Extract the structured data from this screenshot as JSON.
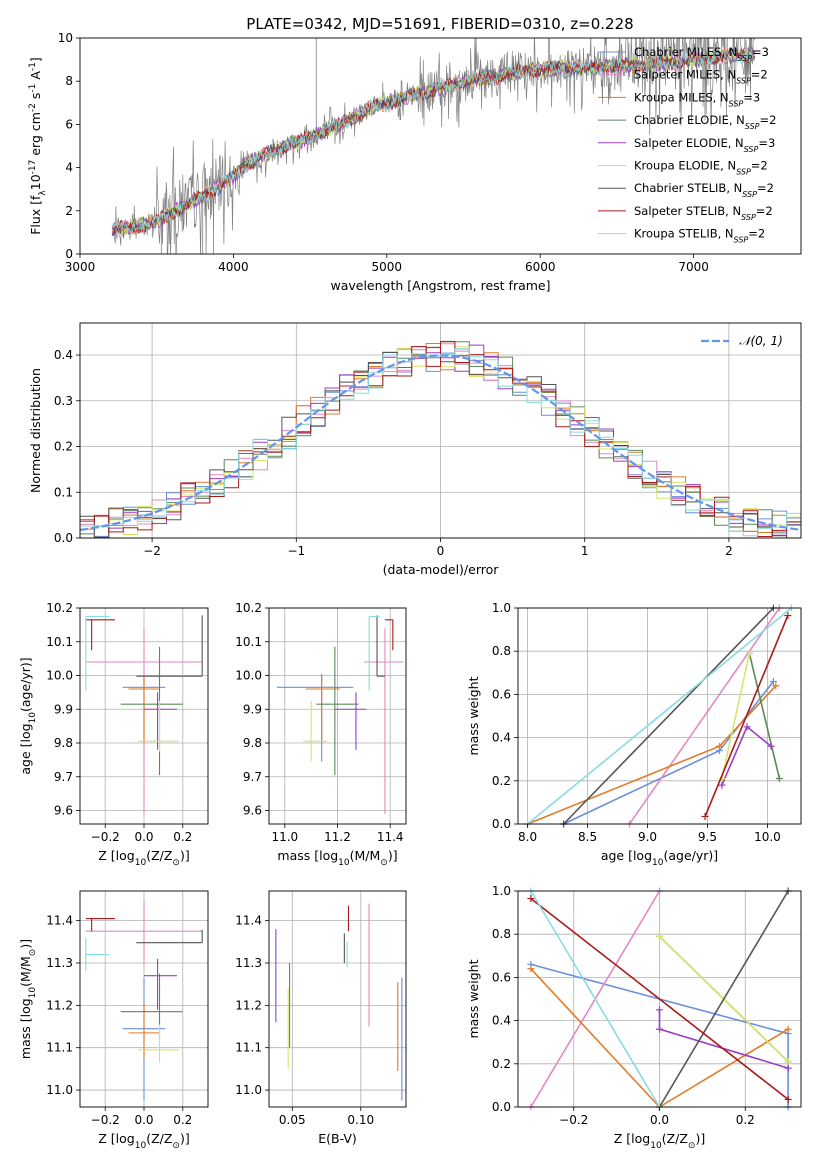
{
  "figure_title": "PLATE=0342, MJD=51691, FIBERID=0310, z=0.228",
  "colors": {
    "Chabrier MILES": "#6a8fdb",
    "Salpeter MILES": "#e389c2",
    "Kroupa MILES": "#e07b28",
    "Chabrier ELODIE": "#5b8a5b",
    "Salpeter ELODIE": "#9a3fc4",
    "Kroupa ELODIE": "#d6e66a",
    "Chabrier STELIB": "#555555",
    "Salpeter STELIB": "#aa1a1a",
    "Kroupa STELIB": "#88dbe3",
    "normal": "#6495ed"
  },
  "chart_data": [
    {
      "id": "spectrum",
      "type": "line",
      "xlabel": "wavelength [Angstrom, rest frame]",
      "ylabel": "Flux [f$_\\lambda$10$^{-17}$ erg cm$^{-2}$ s$^{-1}$ A$^{-1}$]",
      "xlim": [
        3000,
        7700
      ],
      "ylim": [
        0,
        10
      ],
      "xticks": [
        "3000",
        "4000",
        "5000",
        "6000",
        "7000"
      ],
      "yticks": [
        "0",
        "2",
        "4",
        "6",
        "8",
        "10"
      ],
      "legend": [
        {
          "label": "Chabrier MILES, N",
          "sub": "SSP",
          "suffix": "=3",
          "key": "Chabrier MILES"
        },
        {
          "label": "Salpeter MILES, N",
          "sub": "SSP",
          "suffix": "=2",
          "key": "Salpeter MILES"
        },
        {
          "label": "Kroupa MILES, N",
          "sub": "SSP",
          "suffix": "=3",
          "key": "Kroupa MILES"
        },
        {
          "label": "Chabrier ELODIE, N",
          "sub": "SSP",
          "suffix": "=2",
          "key": "Chabrier ELODIE"
        },
        {
          "label": "Salpeter ELODIE, N",
          "sub": "SSP",
          "suffix": "=3",
          "key": "Salpeter ELODIE"
        },
        {
          "label": "Kroupa ELODIE, N",
          "sub": "SSP",
          "suffix": "=2",
          "key": "Kroupa ELODIE"
        },
        {
          "label": "Chabrier STELIB, N",
          "sub": "SSP",
          "suffix": "=2",
          "key": "Chabrier STELIB"
        },
        {
          "label": "Salpeter STELIB, N",
          "sub": "SSP",
          "suffix": "=2",
          "key": "Salpeter STELIB"
        },
        {
          "label": "Kroupa STELIB, N",
          "sub": "SSP",
          "suffix": "=2",
          "key": "Kroupa STELIB"
        }
      ],
      "legend_placement": "right",
      "continuum": {
        "x": [
          3210,
          3300,
          3500,
          3700,
          3900,
          4000,
          4100,
          4300,
          4500,
          4700,
          4900,
          5100,
          5300,
          5500,
          5700,
          5900,
          6100,
          6300,
          6500,
          6700,
          6900,
          7100,
          7300,
          7400
        ],
        "y": [
          1.1,
          1.2,
          1.5,
          2.3,
          3.1,
          3.6,
          4.2,
          4.9,
          5.4,
          6.0,
          6.8,
          7.2,
          7.6,
          8.0,
          8.2,
          8.5,
          8.6,
          8.6,
          8.7,
          8.8,
          8.9,
          9.1,
          9.2,
          9.2
        ]
      },
      "observed_color": "#808080"
    },
    {
      "id": "residuals",
      "type": "step",
      "xlabel": "(data-model)/error",
      "ylabel": "Normed distribution",
      "xlim": [
        -2.5,
        2.5
      ],
      "ylim": [
        0,
        0.47
      ],
      "xticks": [
        "−2",
        "−1",
        "0",
        "1",
        "2"
      ],
      "yticks": [
        "0.0",
        "0.1",
        "0.2",
        "0.3",
        "0.4"
      ],
      "grid": true,
      "legend": [
        {
          "label": "𝒩(0, 1)",
          "key": "normal"
        }
      ],
      "legend_placement": "top-right",
      "series_keys": [
        "Chabrier MILES",
        "Salpeter MILES",
        "Kroupa MILES",
        "Chabrier ELODIE",
        "Salpeter ELODIE",
        "Kroupa ELODIE",
        "Chabrier STELIB",
        "Salpeter STELIB",
        "Kroupa STELIB"
      ]
    },
    {
      "id": "age-vs-Z",
      "type": "errorbar",
      "xlabel": "Z [log$_{10}$(Z/Z$_\\odot$)]",
      "ylabel": "age  [log$_{10}$(age/yr)]",
      "xlim": [
        -0.33,
        0.33
      ],
      "ylim": [
        9.56,
        10.2
      ],
      "xticks": [
        "−0.2",
        "0.0",
        "0.2"
      ],
      "yticks": [
        "9.6",
        "9.7",
        "9.8",
        "9.9",
        "10.0",
        "10.1",
        "10.2"
      ],
      "grid": true,
      "points": [
        {
          "key": "Chabrier MILES",
          "x": 0.0,
          "xerr": [
            0.11,
            0.11
          ],
          "y": 9.965,
          "yerr": [
            0.22,
            0.04
          ]
        },
        {
          "key": "Salpeter MILES",
          "x": 0.0,
          "xerr": [
            0.3,
            0.3
          ],
          "y": 10.04,
          "yerr": [
            0.45,
            0.1
          ]
        },
        {
          "key": "Kroupa MILES",
          "x": 0.0,
          "xerr": [
            0.08,
            0.08
          ],
          "y": 9.96,
          "yerr": [
            0.16,
            0.04
          ]
        },
        {
          "key": "Chabrier ELODIE",
          "x": 0.08,
          "xerr": [
            0.2,
            0.12
          ],
          "y": 9.915,
          "yerr": [
            0.21,
            0.17
          ]
        },
        {
          "key": "Salpeter ELODIE",
          "x": 0.07,
          "xerr": [
            0.07,
            0.1
          ],
          "y": 9.9,
          "yerr": [
            0.12,
            0.05
          ]
        },
        {
          "key": "Kroupa ELODIE",
          "x": 0.08,
          "xerr": [
            0.11,
            0.1
          ],
          "y": 9.805,
          "yerr": [
            0.03,
            0.12
          ]
        },
        {
          "key": "Chabrier STELIB",
          "x": 0.3,
          "xerr": [
            0.34,
            0.0
          ],
          "y": 9.998,
          "yerr": [
            0.0,
            0.18
          ]
        },
        {
          "key": "Salpeter STELIB",
          "x": -0.27,
          "xerr": [
            0.03,
            0.12
          ],
          "y": 10.165,
          "yerr": [
            0.09,
            0.0
          ]
        },
        {
          "key": "Kroupa STELIB",
          "x": -0.3,
          "xerr": [
            0.0,
            0.12
          ],
          "y": 10.175,
          "yerr": [
            0.22,
            0.0
          ]
        }
      ]
    },
    {
      "id": "age-vs-mass",
      "type": "errorbar",
      "xlabel": "mass [log$_{10}$(M/M$_\\odot$)]",
      "ylabel": "",
      "xlim": [
        10.94,
        11.46
      ],
      "ylim": [
        9.56,
        10.2
      ],
      "xticks": [
        "11.0",
        "11.2",
        "11.4"
      ],
      "yticks": [
        "9.6",
        "9.7",
        "9.8",
        "9.9",
        "10.0",
        "10.1",
        "10.2"
      ],
      "grid": true,
      "points": [
        {
          "key": "Chabrier MILES",
          "x": 11.14,
          "xerr": [
            0.17,
            0.12
          ],
          "y": 9.965,
          "yerr": [
            0.22,
            0.04
          ]
        },
        {
          "key": "Salpeter MILES",
          "x": 11.38,
          "xerr": [
            0.08,
            0.07
          ],
          "y": 10.04,
          "yerr": [
            0.45,
            0.1
          ]
        },
        {
          "key": "Kroupa MILES",
          "x": 11.14,
          "xerr": [
            0.06,
            0.07
          ],
          "y": 9.96,
          "yerr": [
            0.16,
            0.04
          ]
        },
        {
          "key": "Chabrier ELODIE",
          "x": 11.19,
          "xerr": [
            0.07,
            0.09
          ],
          "y": 9.915,
          "yerr": [
            0.21,
            0.17
          ]
        },
        {
          "key": "Salpeter ELODIE",
          "x": 11.27,
          "xerr": [
            0.08,
            0.04
          ],
          "y": 9.9,
          "yerr": [
            0.12,
            0.05
          ]
        },
        {
          "key": "Kroupa ELODIE",
          "x": 11.1,
          "xerr": [
            0.03,
            0.06
          ],
          "y": 9.805,
          "yerr": [
            0.06,
            0.12
          ]
        },
        {
          "key": "Chabrier STELIB",
          "x": 11.35,
          "xerr": [
            0.0,
            0.03
          ],
          "y": 9.998,
          "yerr": [
            0.0,
            0.18
          ]
        },
        {
          "key": "Salpeter STELIB",
          "x": 11.41,
          "xerr": [
            0.03,
            0.0
          ],
          "y": 10.165,
          "yerr": [
            0.09,
            0.0
          ]
        },
        {
          "key": "Kroupa STELIB",
          "x": 11.32,
          "xerr": [
            0.0,
            0.04
          ],
          "y": 10.175,
          "yerr": [
            0.22,
            0.0
          ]
        }
      ]
    },
    {
      "id": "weight-vs-age",
      "type": "line",
      "xlabel": "age  [log$_{10}$(age/yr)]",
      "ylabel": "mass weight",
      "xlim": [
        7.92,
        10.28
      ],
      "ylim": [
        0,
        1
      ],
      "xticks": [
        "8.0",
        "8.5",
        "9.0",
        "9.5",
        "10.0"
      ],
      "yticks": [
        "0.0",
        "0.2",
        "0.4",
        "0.6",
        "0.8",
        "1.0"
      ],
      "grid": true,
      "series": [
        {
          "key": "Chabrier MILES",
          "x": [
            8.3,
            9.6,
            10.05
          ],
          "y": [
            0.0,
            0.34,
            0.66
          ]
        },
        {
          "key": "Salpeter MILES",
          "x": [
            8.85,
            10.1
          ],
          "y": [
            0.0,
            1.0
          ]
        },
        {
          "key": "Kroupa MILES",
          "x": [
            8.0,
            9.6,
            10.07
          ],
          "y": [
            0.0,
            0.36,
            0.64
          ]
        },
        {
          "key": "Chabrier ELODIE",
          "x": [
            9.85,
            10.1
          ],
          "y": [
            0.79,
            0.21
          ]
        },
        {
          "key": "Salpeter ELODIE",
          "x": [
            9.62,
            9.83,
            10.03
          ],
          "y": [
            0.18,
            0.45,
            0.36
          ]
        },
        {
          "key": "Kroupa ELODIE",
          "x": [
            9.62,
            9.85
          ],
          "y": [
            0.21,
            0.79
          ]
        },
        {
          "key": "Chabrier STELIB",
          "x": [
            8.3,
            10.05
          ],
          "y": [
            0.0,
            1.0
          ]
        },
        {
          "key": "Salpeter STELIB",
          "x": [
            9.48,
            10.17
          ],
          "y": [
            0.035,
            0.965
          ]
        },
        {
          "key": "Kroupa STELIB",
          "x": [
            8.0,
            10.2
          ],
          "y": [
            0.0,
            1.0
          ]
        }
      ]
    },
    {
      "id": "mass-vs-Z",
      "type": "errorbar",
      "xlabel": "Z [log$_{10}$(Z/Z$_\\odot$)]",
      "ylabel": "mass [log$_{10}$(M/M$_\\odot$)]",
      "xlim": [
        -0.33,
        0.33
      ],
      "ylim": [
        10.96,
        11.47
      ],
      "xticks": [
        "−0.2",
        "0.0",
        "0.2"
      ],
      "yticks": [
        "11.0",
        "11.1",
        "11.2",
        "11.3",
        "11.4"
      ],
      "grid": true,
      "points": [
        {
          "key": "Chabrier MILES",
          "x": 0.0,
          "xerr": [
            0.11,
            0.11
          ],
          "y": 11.145,
          "yerr": [
            0.17,
            0.12
          ]
        },
        {
          "key": "Salpeter MILES",
          "x": 0.0,
          "xerr": [
            0.3,
            0.3
          ],
          "y": 11.375,
          "yerr": [
            0.08,
            0.07
          ]
        },
        {
          "key": "Kroupa MILES",
          "x": 0.0,
          "xerr": [
            0.08,
            0.08
          ],
          "y": 11.135,
          "yerr": [
            0.06,
            0.07
          ]
        },
        {
          "key": "Chabrier ELODIE",
          "x": 0.08,
          "xerr": [
            0.2,
            0.12
          ],
          "y": 11.185,
          "yerr": [
            0.07,
            0.09
          ]
        },
        {
          "key": "Salpeter ELODIE",
          "x": 0.07,
          "xerr": [
            0.07,
            0.1
          ],
          "y": 11.27,
          "yerr": [
            0.08,
            0.04
          ]
        },
        {
          "key": "Kroupa ELODIE",
          "x": 0.08,
          "xerr": [
            0.11,
            0.1
          ],
          "y": 11.095,
          "yerr": [
            0.03,
            0.06
          ]
        },
        {
          "key": "Chabrier STELIB",
          "x": 0.3,
          "xerr": [
            0.34,
            0.0
          ],
          "y": 11.348,
          "yerr": [
            0.0,
            0.03
          ]
        },
        {
          "key": "Salpeter STELIB",
          "x": -0.27,
          "xerr": [
            0.03,
            0.12
          ],
          "y": 11.405,
          "yerr": [
            0.03,
            0.0
          ]
        },
        {
          "key": "Kroupa STELIB",
          "x": -0.3,
          "xerr": [
            0.0,
            0.12
          ],
          "y": 11.32,
          "yerr": [
            0.04,
            0.04
          ]
        }
      ]
    },
    {
      "id": "mass-vs-ebv",
      "type": "errorbar",
      "xlabel": "E(B-V)",
      "ylabel": "",
      "xlim": [
        0.033,
        0.133
      ],
      "ylim": [
        10.96,
        11.47
      ],
      "xticks": [
        "0.05",
        "0.10"
      ],
      "yticks": [
        "11.0",
        "11.1",
        "11.2",
        "11.3",
        "11.4"
      ],
      "grid": true,
      "points": [
        {
          "key": "Chabrier MILES",
          "x": 0.13,
          "xerr": [
            0,
            0
          ],
          "y": 11.145,
          "yerr": [
            0.17,
            0.12
          ]
        },
        {
          "key": "Salpeter MILES",
          "x": 0.106,
          "xerr": [
            0,
            0
          ],
          "y": 11.36,
          "yerr": [
            0.21,
            0.08
          ]
        },
        {
          "key": "Kroupa MILES",
          "x": 0.127,
          "xerr": [
            0,
            0
          ],
          "y": 11.135,
          "yerr": [
            0.09,
            0.12
          ]
        },
        {
          "key": "Chabrier ELODIE",
          "x": 0.048,
          "xerr": [
            0,
            0
          ],
          "y": 11.2,
          "yerr": [
            0.1,
            0.1
          ]
        },
        {
          "key": "Salpeter ELODIE",
          "x": 0.038,
          "xerr": [
            0,
            0
          ],
          "y": 11.27,
          "yerr": [
            0.11,
            0.11
          ]
        },
        {
          "key": "Kroupa ELODIE",
          "x": 0.047,
          "xerr": [
            0,
            0
          ],
          "y": 11.13,
          "yerr": [
            0.08,
            0.11
          ]
        },
        {
          "key": "Chabrier STELIB",
          "x": 0.088,
          "xerr": [
            0,
            0
          ],
          "y": 11.33,
          "yerr": [
            0.03,
            0.04
          ]
        },
        {
          "key": "Salpeter STELIB",
          "x": 0.091,
          "xerr": [
            0,
            0
          ],
          "y": 11.405,
          "yerr": [
            0.03,
            0.03
          ]
        },
        {
          "key": "Kroupa STELIB",
          "x": 0.09,
          "xerr": [
            0,
            0
          ],
          "y": 11.31,
          "yerr": [
            0.02,
            0.04
          ]
        }
      ]
    },
    {
      "id": "weight-vs-Z",
      "type": "line",
      "xlabel": "Z [log$_{10}$(Z/Z$_\\odot$)]",
      "ylabel": "mass weight",
      "xlim": [
        -0.33,
        0.33
      ],
      "ylim": [
        0,
        1
      ],
      "xticks": [
        "−0.2",
        "0.0",
        "0.2"
      ],
      "yticks": [
        "0.0",
        "0.2",
        "0.4",
        "0.6",
        "0.8",
        "1.0"
      ],
      "grid": true,
      "series": [
        {
          "key": "Chabrier MILES",
          "x": [
            -0.3,
            0.3,
            0.3
          ],
          "y": [
            0.66,
            0.34,
            0.0
          ]
        },
        {
          "key": "Salpeter MILES",
          "x": [
            -0.3,
            0.0
          ],
          "y": [
            0.0,
            1.0
          ]
        },
        {
          "key": "Kroupa MILES",
          "x": [
            -0.3,
            0.0,
            0.3
          ],
          "y": [
            0.64,
            0.0,
            0.36
          ]
        },
        {
          "key": "Chabrier ELODIE",
          "x": [
            0.0,
            0.3
          ],
          "y": [
            0.79,
            0.21
          ]
        },
        {
          "key": "Salpeter ELODIE",
          "x": [
            0.0,
            0.0,
            0.3
          ],
          "y": [
            0.45,
            0.36,
            0.18
          ]
        },
        {
          "key": "Kroupa ELODIE",
          "x": [
            0.0,
            0.3
          ],
          "y": [
            0.79,
            0.21
          ]
        },
        {
          "key": "Chabrier STELIB",
          "x": [
            0.0,
            0.3
          ],
          "y": [
            0.0,
            1.0
          ]
        },
        {
          "key": "Salpeter STELIB",
          "x": [
            -0.3,
            0.3
          ],
          "y": [
            0.965,
            0.035
          ]
        },
        {
          "key": "Kroupa STELIB",
          "x": [
            -0.3,
            0.0
          ],
          "y": [
            1.0,
            0.0
          ]
        }
      ]
    }
  ]
}
